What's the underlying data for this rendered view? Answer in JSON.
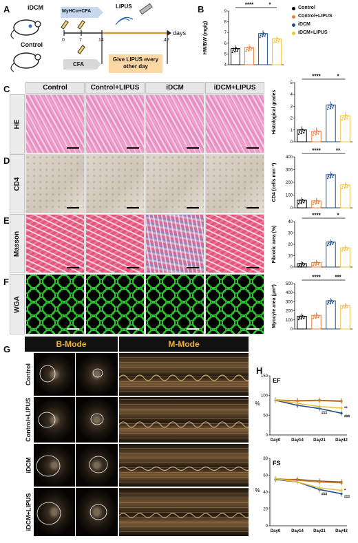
{
  "panels": {
    "A": "A",
    "B": "B",
    "C": "C",
    "D": "D",
    "E": "E",
    "F": "F",
    "G": "G",
    "H": "H"
  },
  "schematic": {
    "idcm": "iDCM",
    "control": "Control",
    "myhca": "MyHCα+CFA",
    "cfa": "CFA",
    "lipus": "LIPUS",
    "lipus_box": "Give LIPUS every other day",
    "days_label": "days",
    "ticks": [
      "0",
      "7",
      "14",
      "42"
    ]
  },
  "histology": {
    "columns": [
      "Control",
      "Control+LIPUS",
      "iDCM",
      "iDCM+LIPUS"
    ],
    "rows": [
      "HE",
      "CD4",
      "Masson",
      "WGA"
    ]
  },
  "legend": {
    "items": [
      {
        "label": "Control",
        "color": "#000000"
      },
      {
        "label": "Control+LIPUS",
        "color": "#f07e3a"
      },
      {
        "label": "iDCM",
        "color": "#1e4f8f"
      },
      {
        "label": "iDCM+LIPUS",
        "color": "#f5c33b"
      }
    ]
  },
  "colors": {
    "Control": "#000000",
    "Control+LIPUS": "#f07e3a",
    "iDCM": "#1e4f8f",
    "iDCM+LIPUS": "#f5c33b"
  },
  "echo": {
    "bmode": "B-Mode",
    "mmode": "M-Mode",
    "rows": [
      "Control",
      "Control+LIPUS",
      "iDCM",
      "iDCM+LIPUS"
    ]
  },
  "chart_data": [
    {
      "panel": "B",
      "type": "bar",
      "ylabel": "HW/BW (mg/g)",
      "ylim": [
        4,
        9
      ],
      "yticks": [
        "4",
        "5",
        "6",
        "7",
        "8",
        "9"
      ],
      "categories": [
        "Control",
        "Control+LIPUS",
        "iDCM",
        "iDCM+LIPUS"
      ],
      "values": [
        5.5,
        5.6,
        6.9,
        6.4
      ],
      "sig": [
        {
          "text": "****",
          "from": 0,
          "to": 2
        },
        {
          "text": "*",
          "from": 2,
          "to": 3
        }
      ]
    },
    {
      "panel": "C",
      "type": "bar",
      "ylabel": "Histological grades",
      "ylim": [
        0,
        5
      ],
      "yticks": [
        "0",
        "1",
        "2",
        "3",
        "4",
        "5"
      ],
      "categories": [
        "Control",
        "Control+LIPUS",
        "iDCM",
        "iDCM+LIPUS"
      ],
      "values": [
        1.0,
        0.9,
        3.1,
        2.2
      ],
      "sig": [
        {
          "text": "****",
          "from": 0,
          "to": 2
        },
        {
          "text": "*",
          "from": 2,
          "to": 3
        }
      ]
    },
    {
      "panel": "D",
      "type": "bar",
      "ylabel": "CD4 (cells mm⁻²)",
      "ylim": [
        0,
        400
      ],
      "yticks": [
        "0",
        "100",
        "200",
        "300",
        "400"
      ],
      "categories": [
        "Control",
        "Control+LIPUS",
        "iDCM",
        "iDCM+LIPUS"
      ],
      "values": [
        60,
        55,
        260,
        180
      ],
      "sig": [
        {
          "text": "****",
          "from": 0,
          "to": 2
        },
        {
          "text": "**",
          "from": 2,
          "to": 3
        }
      ]
    },
    {
      "panel": "E",
      "type": "bar",
      "ylabel": "Fibrotic area (%)",
      "ylim": [
        0,
        40
      ],
      "yticks": [
        "0",
        "10",
        "20",
        "30",
        "40"
      ],
      "categories": [
        "Control",
        "Control+LIPUS",
        "iDCM",
        "iDCM+LIPUS"
      ],
      "values": [
        3,
        4,
        22,
        17
      ],
      "sig": [
        {
          "text": "****",
          "from": 0,
          "to": 2
        },
        {
          "text": "*",
          "from": 2,
          "to": 3
        }
      ]
    },
    {
      "panel": "F",
      "type": "bar",
      "ylabel": "Myocyte area (µm²)",
      "ylim": [
        0,
        500
      ],
      "yticks": [
        "0",
        "100",
        "200",
        "300",
        "400",
        "500"
      ],
      "categories": [
        "Control",
        "Control+LIPUS",
        "iDCM",
        "iDCM+LIPUS"
      ],
      "values": [
        140,
        150,
        310,
        260
      ],
      "sig": [
        {
          "text": "****",
          "from": 0,
          "to": 2
        },
        {
          "text": "***",
          "from": 2,
          "to": 3
        }
      ]
    },
    {
      "panel": "H-EF",
      "type": "line",
      "title": "EF",
      "ylabel": "%",
      "ylim": [
        0,
        150
      ],
      "yticks": [
        "0",
        "50",
        "100",
        "150"
      ],
      "x": [
        "Day0",
        "Day14",
        "Day21",
        "Day42"
      ],
      "series": [
        {
          "name": "Control",
          "values": [
            88,
            87,
            88,
            86
          ]
        },
        {
          "name": "Control+LIPUS",
          "values": [
            89,
            86,
            87,
            85
          ]
        },
        {
          "name": "iDCM",
          "values": [
            88,
            75,
            67,
            55
          ]
        },
        {
          "name": "iDCM+LIPUS",
          "values": [
            89,
            80,
            72,
            68
          ]
        }
      ],
      "annotations": [
        "**",
        "###",
        "###"
      ]
    },
    {
      "panel": "H-FS",
      "type": "line",
      "title": "FS",
      "ylabel": "%",
      "ylim": [
        0,
        80
      ],
      "yticks": [
        "0",
        "20",
        "40",
        "60",
        "80"
      ],
      "x": [
        "Day0",
        "Day14",
        "Day21",
        "Day42"
      ],
      "series": [
        {
          "name": "Control",
          "values": [
            55,
            55,
            53,
            52
          ]
        },
        {
          "name": "Control+LIPUS",
          "values": [
            56,
            54,
            52,
            51
          ]
        },
        {
          "name": "iDCM",
          "values": [
            55,
            52,
            43,
            38
          ]
        },
        {
          "name": "iDCM+LIPUS",
          "values": [
            56,
            52,
            45,
            42
          ]
        }
      ],
      "annotations": [
        "*",
        "###",
        "###"
      ]
    }
  ]
}
